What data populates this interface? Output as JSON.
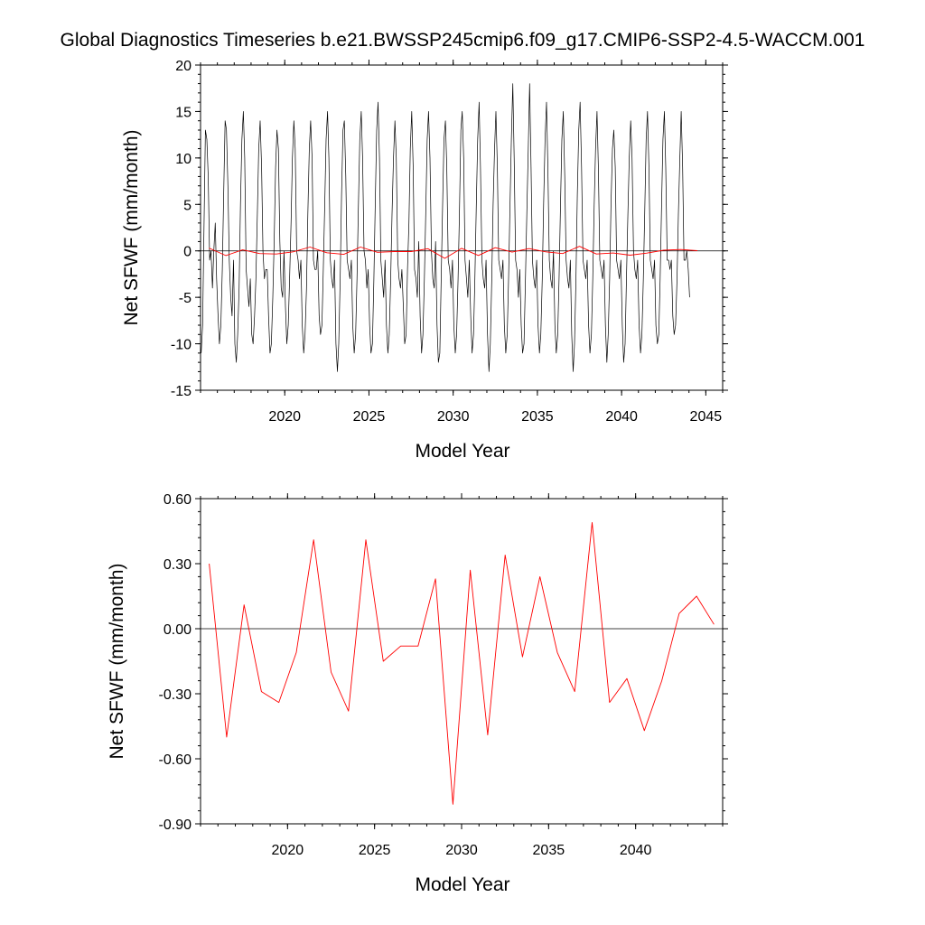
{
  "title": "Global Diagnostics Timeseries b.e21.BWSSP245cmip6.f09_g17.CMIP6-SSP2-4.5-WACCM.001",
  "chart_data": [
    {
      "type": "line",
      "xlabel": "Model Year",
      "ylabel": "Net SFWF (mm/month)",
      "xlim": [
        2015,
        2046
      ],
      "ylim": [
        -15,
        20
      ],
      "xticks": [
        2020,
        2025,
        2030,
        2035,
        2040,
        2045
      ],
      "xtick_labels": [
        "2020",
        "2025",
        "2030",
        "2035",
        "2040",
        "2045"
      ],
      "yticks": [
        -15,
        -10,
        -5,
        0,
        5,
        10,
        15,
        20
      ],
      "ytick_labels": [
        "-15",
        "-10",
        "-5",
        "0",
        "5",
        "10",
        "15",
        "20"
      ],
      "zero_line": true,
      "grid": false,
      "series": [
        {
          "color": "#000000",
          "x_start": 2015.04,
          "x_step": 0.08333,
          "values": [
            -11,
            -8,
            3,
            13,
            12,
            8,
            -1,
            0,
            -4,
            0,
            3,
            -3,
            -7,
            -10,
            -8,
            -2,
            6,
            14,
            13,
            7,
            -1,
            -5,
            -7,
            -1,
            -10,
            -12,
            -9,
            -4,
            5,
            12,
            15,
            10,
            -2,
            -4,
            -6,
            -3,
            -9,
            -10,
            -7,
            -3,
            4,
            11,
            14,
            9,
            0,
            -3,
            -2,
            -2,
            -7,
            -11,
            -10,
            -5,
            1,
            9,
            13,
            11,
            1,
            -4,
            -5,
            0,
            -6,
            -10,
            -8,
            -3,
            3,
            10,
            14,
            11,
            0,
            -1,
            -3,
            -1,
            -8,
            -11,
            -9,
            -4,
            4,
            11,
            14,
            10,
            -1,
            -2,
            -2,
            0,
            -7,
            -9,
            -8,
            -2,
            5,
            12,
            15,
            10,
            -1,
            -3,
            -4,
            -1,
            -10,
            -13,
            -10,
            -3,
            6,
            13,
            14,
            8,
            -1,
            -2,
            -3,
            -1,
            -8,
            -11,
            -9,
            -3,
            5,
            12,
            15,
            10,
            0,
            -1,
            -4,
            -2,
            -8,
            -11,
            -10,
            -3,
            5,
            13,
            16,
            10,
            -1,
            -3,
            -5,
            -1,
            -8,
            -11,
            -9,
            -3,
            4,
            10,
            14,
            10,
            -1,
            -3,
            -4,
            -2,
            -6,
            -10,
            -9,
            -2,
            3,
            11,
            15,
            9,
            -2,
            -3,
            -5,
            1,
            -7,
            -11,
            -9,
            -3,
            4,
            12,
            15,
            10,
            0,
            -3,
            -4,
            1,
            -8,
            -12,
            -11,
            -3,
            5,
            12,
            14,
            9,
            -1,
            -2,
            -4,
            -1,
            -8,
            -11,
            -9,
            -3,
            4,
            13,
            15,
            10,
            -1,
            -3,
            -5,
            -1,
            -7,
            -11,
            -9,
            -3,
            5,
            12,
            16,
            9,
            -1,
            -3,
            -4,
            -1,
            -9,
            -13,
            -10,
            -3,
            5,
            11,
            15,
            9,
            -1,
            -2,
            -3,
            -1,
            -8,
            -11,
            -9,
            -3,
            5,
            12,
            18,
            10,
            -1,
            -2,
            -5,
            -2,
            -8,
            -11,
            -10,
            -3,
            4,
            11,
            18,
            9,
            -1,
            -3,
            -4,
            -1,
            -8,
            -11,
            -9,
            -3,
            5,
            12,
            16,
            9,
            -1,
            -3,
            -4,
            0,
            -8,
            -11,
            -9,
            -3,
            5,
            12,
            15,
            8,
            -1,
            -3,
            -4,
            -1,
            -9,
            -13,
            -10,
            -3,
            6,
            13,
            16,
            9,
            -1,
            -2,
            -3,
            -1,
            -8,
            -11,
            -9,
            -3,
            5,
            11,
            15,
            9,
            -1,
            -2,
            -3,
            -1,
            -8,
            -12,
            -9,
            -3,
            5,
            11,
            13,
            9,
            -1,
            -2,
            -3,
            -1,
            -8,
            -12,
            -10,
            -3,
            4,
            10,
            14,
            10,
            0,
            -2,
            -3,
            -1,
            -8,
            -11,
            -9,
            -3,
            4,
            12,
            15,
            9,
            -1,
            -2,
            -3,
            -1,
            -8,
            -10,
            -9,
            -3,
            5,
            12,
            15,
            9,
            -1,
            -1,
            -2,
            -1,
            -7,
            -9,
            -8,
            -3,
            4,
            10,
            15,
            9,
            -1,
            -1,
            0,
            -2,
            -5
          ]
        },
        {
          "color": "#ff0000",
          "x": [
            2015.5,
            2016.5,
            2017.5,
            2018.5,
            2019.5,
            2020.5,
            2021.5,
            2022.5,
            2023.5,
            2024.5,
            2025.5,
            2026.5,
            2027.5,
            2028.5,
            2029.5,
            2030.5,
            2031.5,
            2032.5,
            2033.5,
            2034.5,
            2035.5,
            2036.5,
            2037.5,
            2038.5,
            2039.5,
            2040.5,
            2041.5,
            2042.5,
            2043.5,
            2044.5
          ],
          "values": [
            0.3,
            -0.5,
            0.11,
            -0.29,
            -0.34,
            -0.11,
            0.41,
            -0.2,
            -0.38,
            0.41,
            -0.15,
            -0.08,
            -0.08,
            0.23,
            -0.81,
            0.27,
            -0.49,
            0.34,
            -0.13,
            0.24,
            -0.11,
            -0.29,
            0.49,
            -0.34,
            -0.23,
            -0.47,
            -0.24,
            0.07,
            0.15,
            0.02
          ]
        }
      ]
    },
    {
      "type": "line",
      "xlabel": "Model Year",
      "ylabel": "Net SFWF (mm/month)",
      "xlim": [
        2015,
        2045
      ],
      "ylim": [
        -0.9,
        0.6
      ],
      "xticks": [
        2020,
        2025,
        2030,
        2035,
        2040
      ],
      "xtick_labels": [
        "2020",
        "2025",
        "2030",
        "2035",
        "2040"
      ],
      "yticks": [
        -0.9,
        -0.6,
        -0.3,
        0,
        0.3,
        0.6
      ],
      "ytick_labels": [
        "-0.90",
        "-0.60",
        "-0.30",
        "0.00",
        "0.30",
        "0.60"
      ],
      "zero_line": true,
      "grid": false,
      "series": [
        {
          "color": "#ff0000",
          "x": [
            2015.5,
            2016.5,
            2017.5,
            2018.5,
            2019.5,
            2020.5,
            2021.5,
            2022.5,
            2023.5,
            2024.5,
            2025.5,
            2026.5,
            2027.5,
            2028.5,
            2029.5,
            2030.5,
            2031.5,
            2032.5,
            2033.5,
            2034.5,
            2035.5,
            2036.5,
            2037.5,
            2038.5,
            2039.5,
            2040.5,
            2041.5,
            2042.5,
            2043.5,
            2044.5
          ],
          "values": [
            0.3,
            -0.5,
            0.11,
            -0.29,
            -0.34,
            -0.11,
            0.41,
            -0.2,
            -0.38,
            0.41,
            -0.15,
            -0.08,
            -0.08,
            0.23,
            -0.81,
            0.27,
            -0.49,
            0.34,
            -0.13,
            0.24,
            -0.11,
            -0.29,
            0.49,
            -0.34,
            -0.23,
            -0.47,
            -0.24,
            0.07,
            0.15,
            0.02
          ]
        }
      ]
    }
  ]
}
